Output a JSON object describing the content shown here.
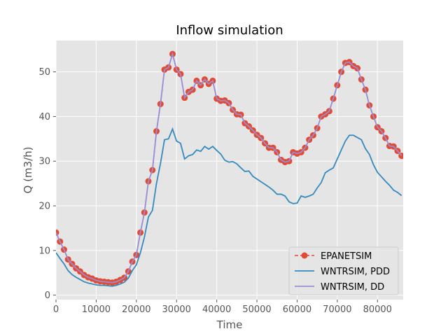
{
  "chart_data": {
    "type": "line",
    "title": "Inflow simulation",
    "xlabel": "Time",
    "ylabel": "Q (m3/h)",
    "xlim": [
      0,
      86400
    ],
    "ylim": [
      -1,
      57
    ],
    "xticks": [
      0,
      10000,
      20000,
      30000,
      40000,
      50000,
      60000,
      70000,
      80000
    ],
    "yticks": [
      0,
      10,
      20,
      30,
      40,
      50
    ],
    "grid": true,
    "legend_position": "lower-right",
    "x": [
      0,
      1000,
      2000,
      3000,
      4000,
      5000,
      6000,
      7000,
      8000,
      9000,
      10000,
      11000,
      12000,
      13000,
      14000,
      15000,
      16000,
      17000,
      18000,
      19000,
      20000,
      21000,
      22000,
      23000,
      24000,
      25000,
      26000,
      27000,
      28000,
      29000,
      30000,
      31000,
      32000,
      33000,
      34000,
      35000,
      36000,
      37000,
      38000,
      39000,
      40000,
      41000,
      42000,
      43000,
      44000,
      45000,
      46000,
      47000,
      48000,
      49000,
      50000,
      51000,
      52000,
      53000,
      54000,
      55000,
      56000,
      57000,
      58000,
      59000,
      60000,
      61000,
      62000,
      63000,
      64000,
      65000,
      66000,
      67000,
      68000,
      69000,
      70000,
      71000,
      72000,
      73000,
      74000,
      75000,
      76000,
      77000,
      78000,
      79000,
      80000,
      81000,
      82000,
      83000,
      84000,
      85000,
      86000
    ],
    "series": [
      {
        "name": "EPANETSIM",
        "color": "#e24a33",
        "style": "dashed-markers",
        "values": [
          14,
          12,
          10.2,
          8,
          7,
          6,
          5.3,
          4.5,
          4,
          3.7,
          3.3,
          3.1,
          3.0,
          2.9,
          2.8,
          3.0,
          3.4,
          3.9,
          5.3,
          7.5,
          9.0,
          14,
          18.5,
          25.5,
          28,
          36.7,
          42.8,
          50.5,
          51,
          54,
          50.5,
          49.5,
          44.2,
          45.5,
          46,
          48,
          47,
          48.3,
          47.3,
          48.0,
          44,
          43.5,
          43.6,
          43,
          41.5,
          40.5,
          40.4,
          38.5,
          37.8,
          36.9,
          35.9,
          35.2,
          34,
          33,
          33,
          32,
          30.3,
          29.8,
          30,
          32,
          31.7,
          32,
          33,
          34.8,
          35.8,
          37.4,
          40,
          40.5,
          41.2,
          44,
          47,
          50,
          52,
          52.2,
          51.3,
          50.8,
          48.3,
          46,
          42.5,
          40,
          37.6,
          36.7,
          35.2,
          33.4,
          33.3,
          32.3,
          31.2
        ]
      },
      {
        "name": "WNTRSIM, PDD",
        "color": "#348abd",
        "style": "solid",
        "values": [
          9.5,
          8.2,
          7,
          5.5,
          4.6,
          4,
          3.5,
          3,
          2.7,
          2.5,
          2.3,
          2.2,
          2.2,
          2.1,
          2.0,
          2.2,
          2.5,
          2.9,
          3.8,
          5.5,
          6.8,
          9.5,
          13,
          17.5,
          19,
          25,
          29.5,
          34.8,
          35,
          37.2,
          34.5,
          34,
          30.5,
          31.2,
          31.5,
          32.5,
          32.2,
          33.3,
          32.7,
          33.3,
          32.4,
          31.6,
          30.2,
          29.8,
          29.9,
          29.4,
          28.5,
          27.7,
          27.8,
          26.6,
          26,
          25.4,
          24.8,
          24.2,
          23.5,
          22.6,
          22.6,
          22.2,
          20.9,
          20.5,
          20.6,
          22.2,
          21.9,
          22.2,
          22.6,
          24,
          25.2,
          27.4,
          28,
          28.5,
          30.5,
          32.5,
          34.5,
          35.8,
          35.8,
          35.3,
          34.8,
          32.8,
          31.5,
          29.2,
          27.5,
          26.5,
          25.5,
          24.6,
          23.5,
          23.0,
          22.3
        ]
      },
      {
        "name": "WNTRSIM, DD",
        "color": "#988ed5",
        "style": "solid",
        "values": [
          14,
          12,
          10.2,
          8,
          7,
          6,
          5.3,
          4.5,
          4,
          3.7,
          3.3,
          3.1,
          3.0,
          2.9,
          2.8,
          3.0,
          3.4,
          3.9,
          5.3,
          7.5,
          9.0,
          14,
          18.5,
          25.5,
          28,
          36.7,
          42.8,
          50.5,
          51,
          54,
          50.5,
          49.5,
          44.2,
          45.5,
          46,
          48,
          47,
          48.3,
          47.3,
          48.0,
          44,
          43.5,
          43.6,
          43,
          41.5,
          40.5,
          40.4,
          38.5,
          37.8,
          36.9,
          35.9,
          35.2,
          34,
          33,
          33,
          32,
          30.3,
          29.8,
          30,
          32,
          31.7,
          32,
          33,
          34.8,
          35.8,
          37.4,
          40,
          40.5,
          41.2,
          44,
          47,
          50,
          52,
          52.2,
          51.3,
          50.8,
          48.3,
          46,
          42.5,
          40,
          37.6,
          36.7,
          35.2,
          33.4,
          33.3,
          32.3,
          31.2
        ]
      }
    ]
  }
}
